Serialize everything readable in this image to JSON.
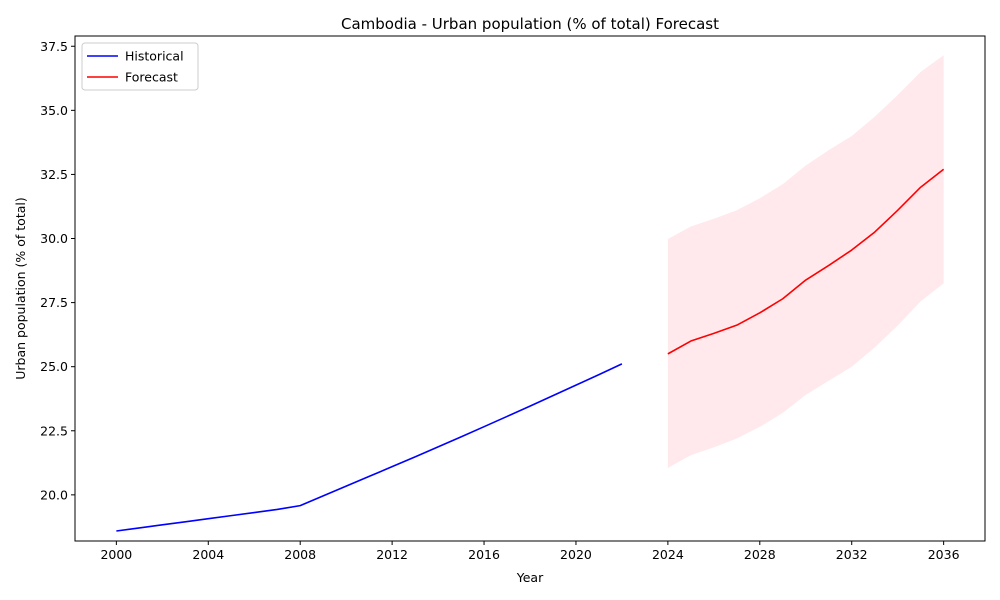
{
  "chart_data": {
    "type": "line",
    "title": "Cambodia - Urban population (% of total) Forecast",
    "xlabel": "Year",
    "ylabel": "Urban population (% of total)",
    "xlim": [
      1998.2,
      2037.8
    ],
    "ylim": [
      18.2,
      37.9
    ],
    "xticks": [
      2000,
      2004,
      2008,
      2012,
      2016,
      2020,
      2024,
      2028,
      2032,
      2036
    ],
    "xtick_labels": [
      "2000",
      "2004",
      "2008",
      "2012",
      "2016",
      "2020",
      "2024",
      "2028",
      "2032",
      "2036"
    ],
    "yticks": [
      20.0,
      22.5,
      25.0,
      27.5,
      30.0,
      32.5,
      35.0,
      37.5
    ],
    "ytick_labels": [
      "20.0",
      "22.5",
      "25.0",
      "27.5",
      "30.0",
      "32.5",
      "35.0",
      "37.5"
    ],
    "grid": false,
    "legend": {
      "position": "top-left",
      "entries": [
        "Historical",
        "Forecast"
      ]
    },
    "colors": {
      "historical": "#0000ff",
      "forecast": "#ff0000",
      "band": "#ffc0cb"
    },
    "series": [
      {
        "name": "Historical",
        "x": [
          2000,
          2001,
          2002,
          2003,
          2004,
          2005,
          2006,
          2007,
          2008,
          2009,
          2010,
          2011,
          2012,
          2013,
          2014,
          2015,
          2016,
          2017,
          2018,
          2019,
          2020,
          2021,
          2022
        ],
        "y": [
          18.59,
          18.71,
          18.83,
          18.95,
          19.07,
          19.19,
          19.31,
          19.43,
          19.58,
          19.96,
          20.34,
          20.72,
          21.1,
          21.48,
          21.87,
          22.26,
          22.66,
          23.06,
          23.46,
          23.87,
          24.28,
          24.69,
          25.11
        ]
      },
      {
        "name": "Forecast",
        "x": [
          2024,
          2025,
          2026,
          2027,
          2028,
          2029,
          2030,
          2031,
          2032,
          2033,
          2034,
          2035,
          2036
        ],
        "y": [
          25.5,
          26.0,
          26.3,
          26.62,
          27.1,
          27.65,
          28.38,
          28.95,
          29.55,
          30.25,
          31.1,
          32.0,
          32.7
        ],
        "lower": [
          21.05,
          21.55,
          21.85,
          22.2,
          22.65,
          23.2,
          23.9,
          24.45,
          25.0,
          25.75,
          26.6,
          27.55,
          28.25
        ],
        "upper": [
          29.98,
          30.47,
          30.77,
          31.1,
          31.57,
          32.12,
          32.85,
          33.45,
          34.0,
          34.75,
          35.6,
          36.5,
          37.15
        ]
      }
    ]
  }
}
